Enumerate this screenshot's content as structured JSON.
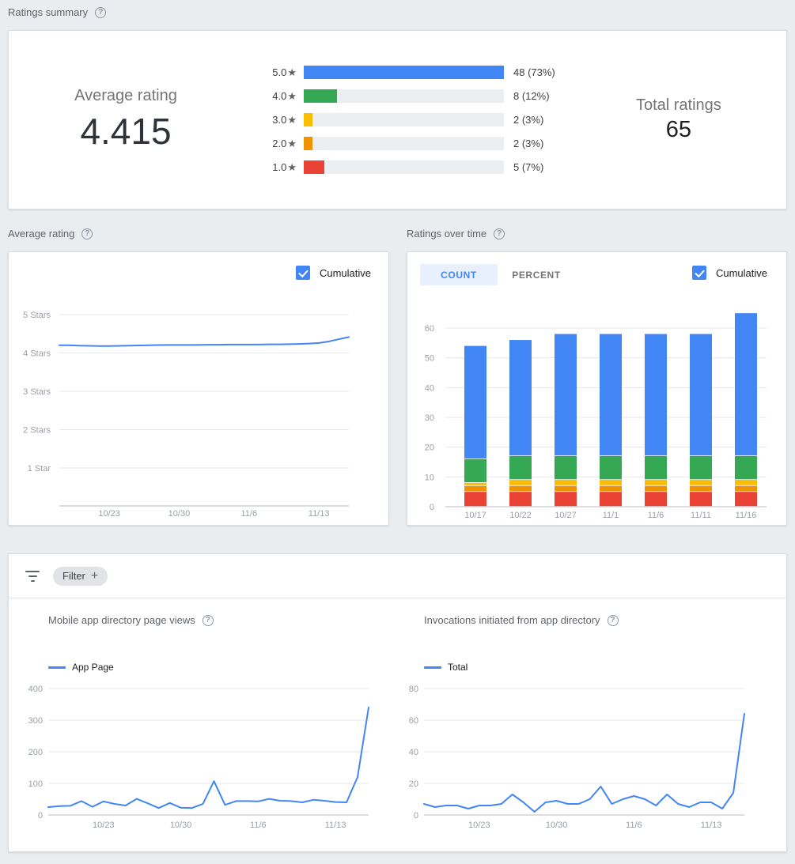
{
  "icons": {
    "help": "?",
    "star": "★",
    "plus": "+"
  },
  "palette": {
    "blue": "#4285f4",
    "green": "#34a853",
    "yellow": "#fbbc04",
    "orange": "#f09300",
    "red": "#ea4335",
    "track": "#eceff1",
    "tab_active_bg": "#e8f0fe",
    "accent": "#4285f4"
  },
  "summary": {
    "header": "Ratings summary",
    "average_label": "Average rating",
    "average_value": "4.415",
    "total_label": "Total ratings",
    "total_value": "65",
    "max_value": 48,
    "distribution": [
      {
        "stars": "5.0",
        "value": 48,
        "count_display": "48 (73%)",
        "color": "#4285f4"
      },
      {
        "stars": "4.0",
        "value": 8,
        "count_display": "8 (12%)",
        "color": "#34a853"
      },
      {
        "stars": "3.0",
        "value": 2,
        "count_display": "2 (3%)",
        "color": "#fbbc04"
      },
      {
        "stars": "2.0",
        "value": 2,
        "count_display": "2 (3%)",
        "color": "#f09300"
      },
      {
        "stars": "1.0",
        "value": 5,
        "count_display": "5 (7%)",
        "color": "#ea4335"
      }
    ]
  },
  "average_rating_card": {
    "header": "Average rating",
    "cumulative_label": "Cumulative",
    "cumulative_checked": true,
    "chart_data": {
      "type": "line",
      "title": "Average rating (cumulative)",
      "y_axis_labels": [
        "5 Stars",
        "4 Stars",
        "3 Stars",
        "2 Stars",
        "1 Star"
      ],
      "ylim": [
        1,
        5
      ],
      "x_ticks": [
        "10/23",
        "10/30",
        "11/6",
        "11/13"
      ],
      "x_tick_indices": [
        5,
        12,
        19,
        26
      ],
      "values": [
        4.2,
        4.2,
        4.19,
        4.185,
        4.18,
        4.18,
        4.185,
        4.19,
        4.195,
        4.2,
        4.205,
        4.21,
        4.21,
        4.21,
        4.21,
        4.215,
        4.215,
        4.22,
        4.22,
        4.22,
        4.22,
        4.225,
        4.225,
        4.23,
        4.235,
        4.245,
        4.26,
        4.3,
        4.36,
        4.415
      ]
    }
  },
  "ratings_over_time_card": {
    "header": "Ratings over time",
    "tabs": [
      {
        "label": "COUNT",
        "active": true
      },
      {
        "label": "PERCENT",
        "active": false
      }
    ],
    "cumulative_label": "Cumulative",
    "cumulative_checked": true,
    "chart_data": {
      "type": "bar",
      "title": "Ratings over time (cumulative count)",
      "categories": [
        "10/17",
        "10/22",
        "10/27",
        "11/1",
        "11/6",
        "11/11",
        "11/16"
      ],
      "series": [
        {
          "name": "1 star",
          "color": "#ea4335",
          "values": [
            5,
            5,
            5,
            5,
            5,
            5,
            5
          ]
        },
        {
          "name": "2 stars",
          "color": "#f09300",
          "values": [
            2,
            2,
            2,
            2,
            2,
            2,
            2
          ]
        },
        {
          "name": "3 stars",
          "color": "#fbbc04",
          "values": [
            1,
            2,
            2,
            2,
            2,
            2,
            2
          ]
        },
        {
          "name": "4 stars",
          "color": "#34a853",
          "values": [
            8,
            8,
            8,
            8,
            8,
            8,
            8
          ]
        },
        {
          "name": "5 stars",
          "color": "#4285f4",
          "values": [
            38,
            39,
            41,
            41,
            41,
            41,
            48
          ]
        }
      ],
      "stacked": true,
      "y_ticks": [
        0,
        10,
        20,
        30,
        40,
        50,
        60
      ],
      "ylim": [
        0,
        67
      ]
    }
  },
  "filter_section": {
    "chip_label": "Filter",
    "page_views": {
      "title": "Mobile app directory page views",
      "legend": "App Page",
      "chart_data": {
        "type": "line",
        "title": "Mobile app directory page views",
        "series_name": "App Page",
        "x_ticks": [
          "10/23",
          "10/30",
          "11/6",
          "11/13"
        ],
        "x_tick_indices": [
          5,
          12,
          19,
          26
        ],
        "y_ticks": [
          0,
          100,
          200,
          300,
          400
        ],
        "ylim": [
          0,
          400
        ],
        "values": [
          25,
          28,
          29,
          44,
          26,
          43,
          35,
          30,
          51,
          37,
          22,
          38,
          23,
          22,
          35,
          107,
          32,
          44,
          44,
          43,
          51,
          45,
          44,
          40,
          48,
          45,
          41,
          40,
          120,
          340
        ]
      }
    },
    "invocations": {
      "title": "Invocations initiated from app directory",
      "legend": "Total",
      "chart_data": {
        "type": "line",
        "title": "Invocations initiated from app directory",
        "series_name": "Total",
        "x_ticks": [
          "10/23",
          "10/30",
          "11/6",
          "11/13"
        ],
        "x_tick_indices": [
          5,
          12,
          19,
          26
        ],
        "y_ticks": [
          0,
          20,
          40,
          60,
          80
        ],
        "ylim": [
          0,
          80
        ],
        "values": [
          7,
          5,
          6,
          6,
          4,
          6,
          6,
          7,
          13,
          8,
          2,
          8,
          9,
          7,
          7,
          10,
          18,
          7,
          10,
          12,
          10,
          6,
          13,
          7,
          5,
          8,
          8,
          4,
          14,
          64
        ]
      }
    }
  }
}
